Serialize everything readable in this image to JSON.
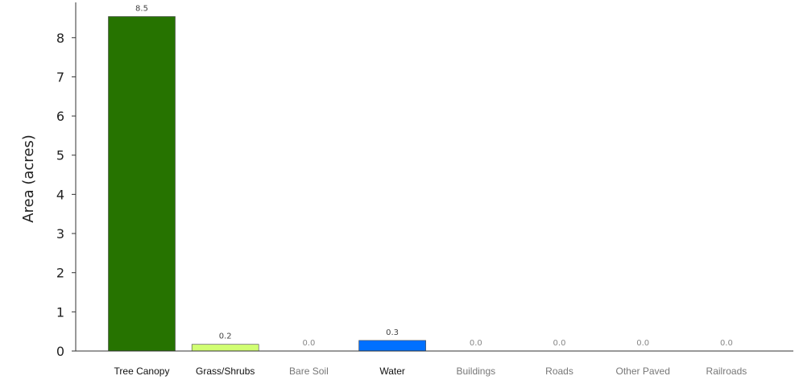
{
  "chart_data": {
    "type": "bar",
    "ylabel": "Area (acres)",
    "xlabel": "",
    "ylim": [
      0,
      8.9
    ],
    "yticks": [
      "0",
      "1",
      "2",
      "3",
      "4",
      "5",
      "6",
      "7",
      "8"
    ],
    "categories": [
      "Tree Canopy",
      "Grass/Shrubs",
      "Bare Soil",
      "Water",
      "Buildings",
      "Roads",
      "Other Paved",
      "Railroads"
    ],
    "values": [
      8.54,
      0.17,
      0.0,
      0.27,
      0.0,
      0.0,
      0.0,
      0.0
    ],
    "value_labels": [
      "8.5",
      "0.2",
      "0.0",
      "0.3",
      "0.0",
      "0.0",
      "0.0",
      "0.0"
    ],
    "colors": [
      "#267300",
      "#d1ff73",
      "#ffffff",
      "#0070ff",
      "#ffffff",
      "#ffffff",
      "#ffffff",
      "#ffffff"
    ],
    "grid": false,
    "legend": "none"
  }
}
